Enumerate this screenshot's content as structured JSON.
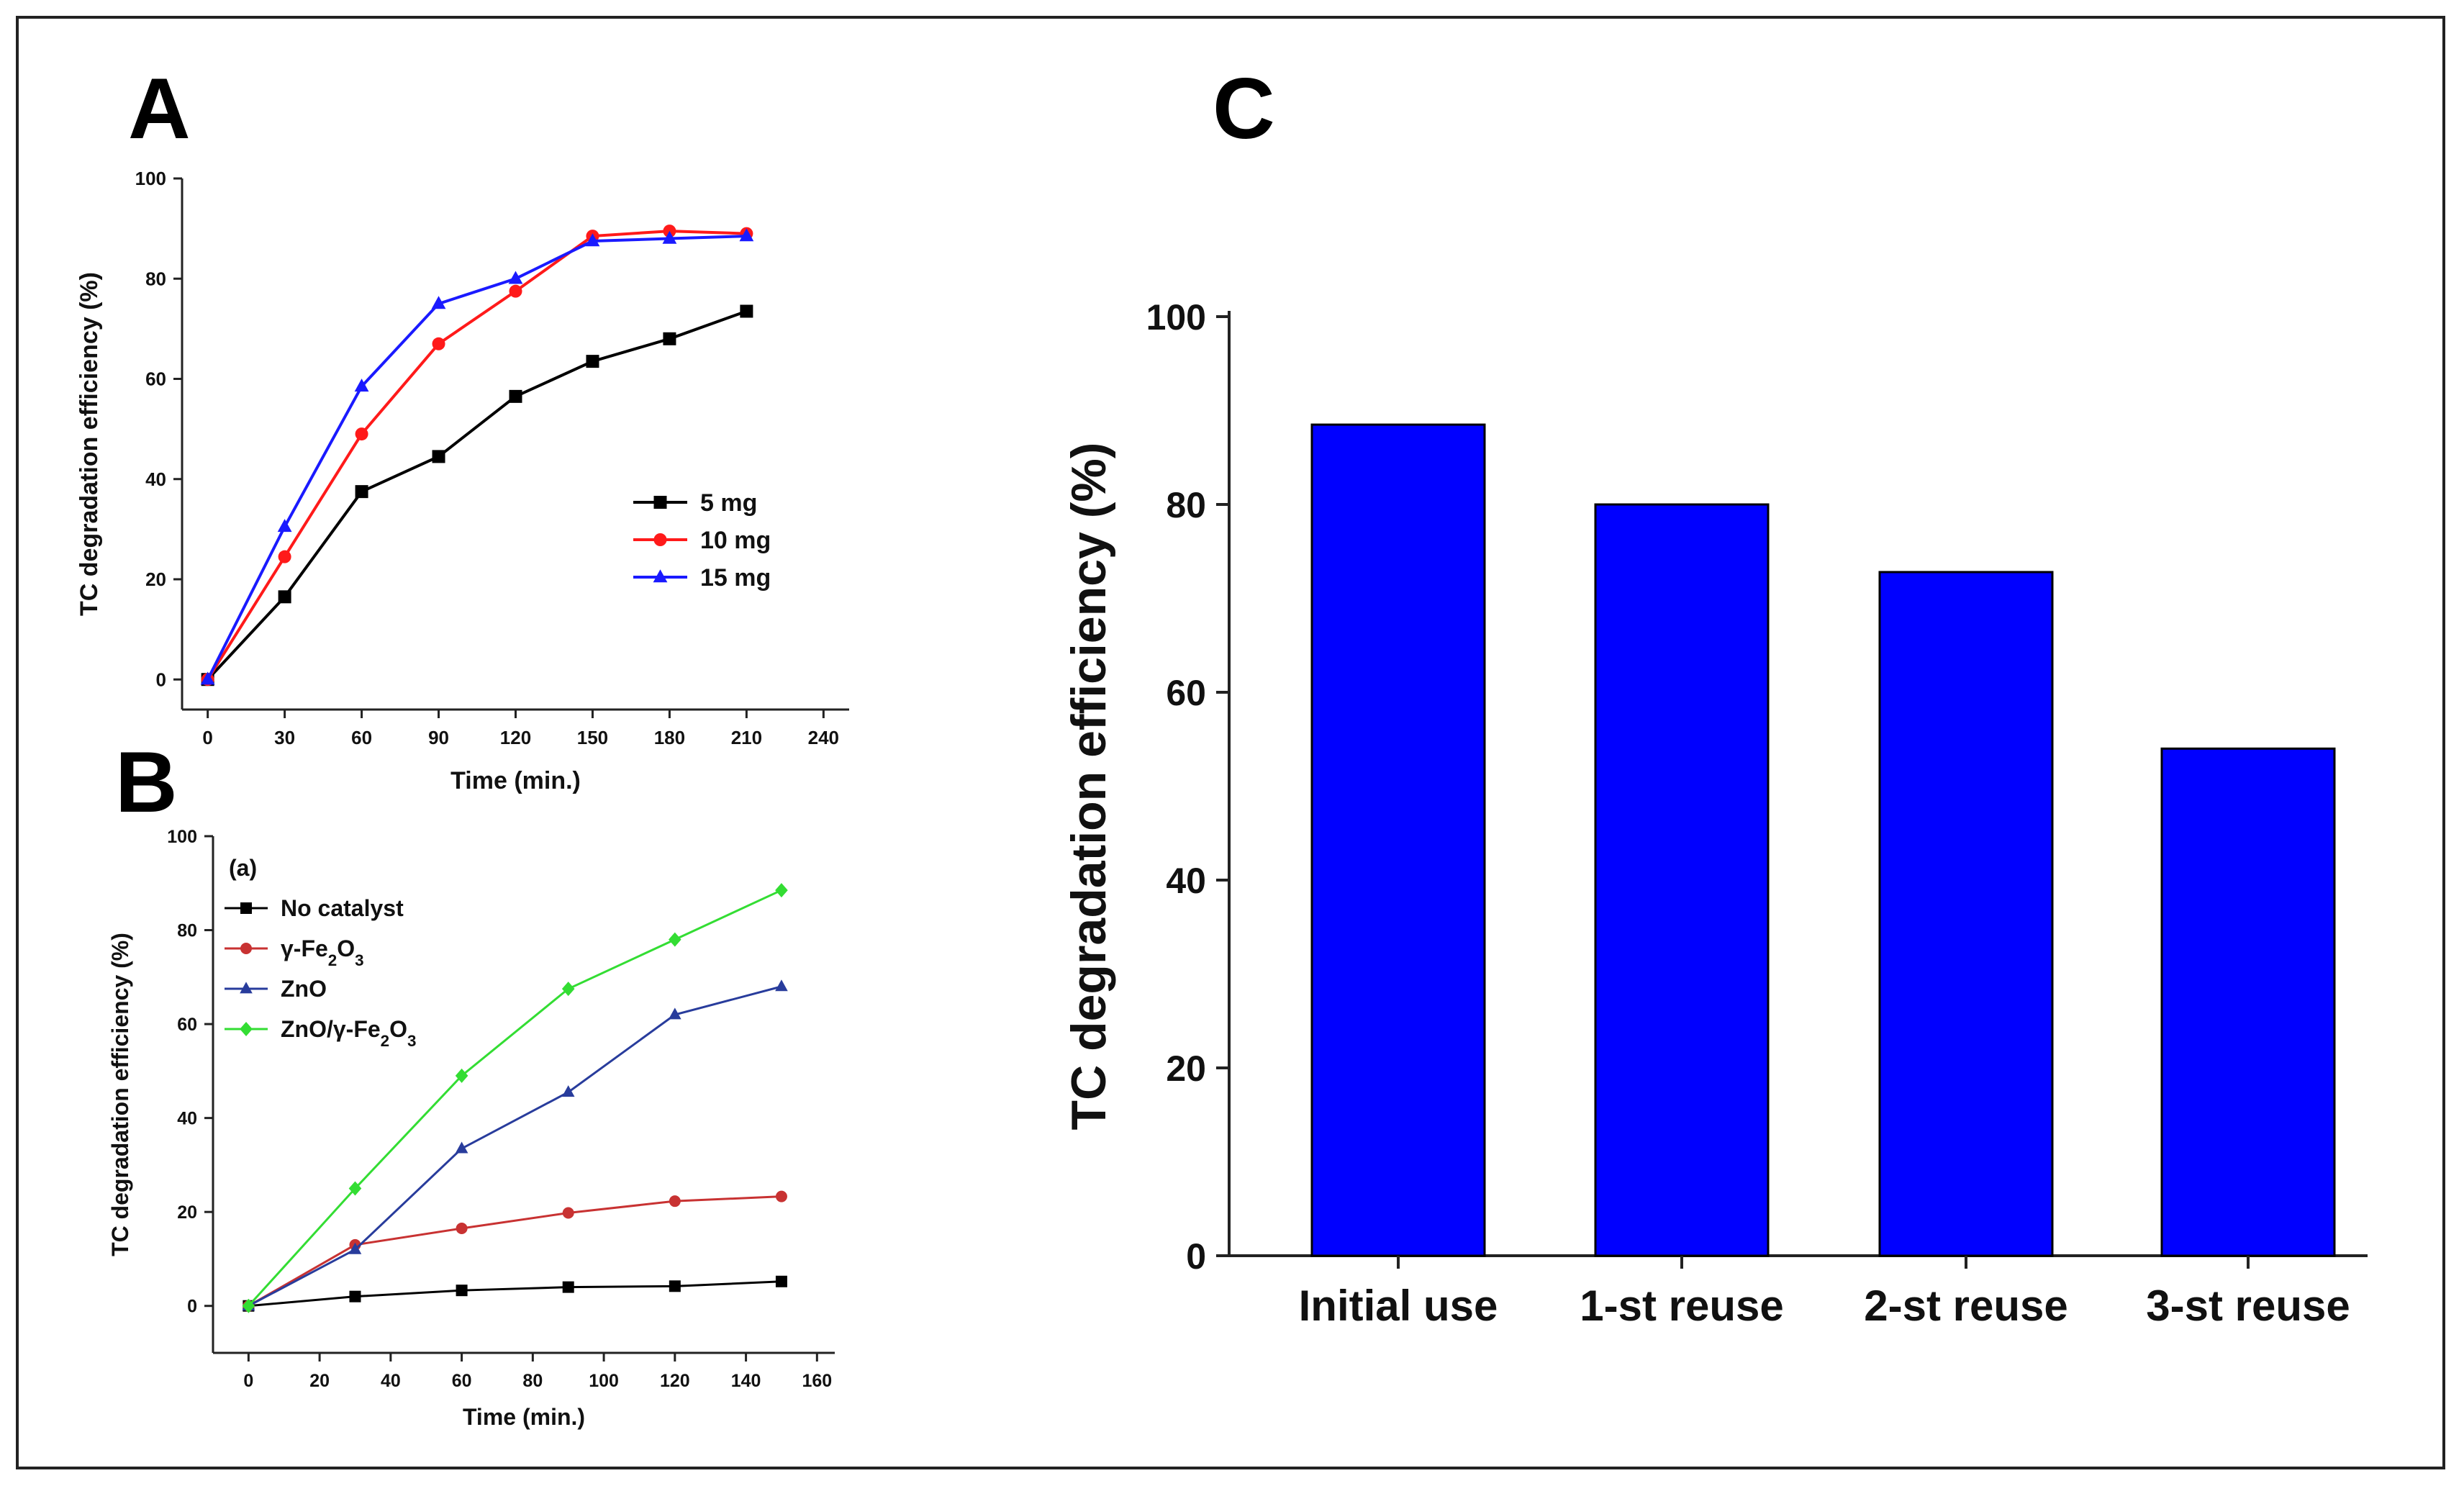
{
  "panels": {
    "a_label": "A",
    "b_label": "B",
    "c_label": "C"
  },
  "chart_data": [
    {
      "id": "A",
      "type": "line",
      "xlabel": "Time (min.)",
      "ylabel": "TC degradation efficiency (%)",
      "xlim": [
        -10,
        250
      ],
      "ylim": [
        -6,
        100
      ],
      "xticks": [
        0,
        30,
        60,
        90,
        120,
        150,
        180,
        210,
        240
      ],
      "yticks": [
        0,
        20,
        40,
        60,
        80,
        100
      ],
      "legend_position": "center-right",
      "series": [
        {
          "name": "5 mg",
          "color": "#000000",
          "marker": "square",
          "x": [
            0,
            30,
            60,
            90,
            120,
            150,
            180,
            210
          ],
          "y": [
            0,
            16.5,
            37.5,
            44.5,
            56.5,
            63.5,
            68,
            73.5
          ]
        },
        {
          "name": "10 mg",
          "color": "#ff1a1a",
          "marker": "circle",
          "x": [
            0,
            30,
            60,
            90,
            120,
            150,
            180,
            210
          ],
          "y": [
            0,
            24.5,
            49,
            67,
            77.5,
            88.5,
            89.5,
            89
          ]
        },
        {
          "name": "15 mg",
          "color": "#1a1aff",
          "marker": "triangle",
          "x": [
            0,
            30,
            60,
            90,
            120,
            150,
            180,
            210
          ],
          "y": [
            0,
            30.5,
            58.5,
            75,
            80,
            87.5,
            88,
            88.5
          ]
        }
      ]
    },
    {
      "id": "B",
      "type": "line",
      "inner_label": "(a)",
      "xlabel": "Time (min.)",
      "ylabel": "TC degradation efficiency (%)",
      "xlim": [
        -10,
        165
      ],
      "ylim": [
        -10,
        100
      ],
      "xticks": [
        0,
        20,
        40,
        60,
        80,
        100,
        120,
        140,
        160
      ],
      "yticks": [
        0,
        20,
        40,
        60,
        80,
        100
      ],
      "legend_position": "top-left",
      "series": [
        {
          "name": "No catalyst",
          "color": "#000000",
          "marker": "square",
          "x": [
            0,
            30,
            60,
            90,
            120,
            150
          ],
          "y": [
            0,
            2,
            3.3,
            4,
            4.2,
            5.2
          ]
        },
        {
          "name_prefix": "γ-Fe",
          "name_sub1": "2",
          "name_mid": "O",
          "name_sub2": "3",
          "color": "#c83232",
          "marker": "circle",
          "x": [
            0,
            30,
            60,
            90,
            120,
            150
          ],
          "y": [
            0,
            13,
            16.5,
            19.8,
            22.3,
            23.3
          ]
        },
        {
          "name": "ZnO",
          "color": "#283c9c",
          "marker": "triangle",
          "x": [
            0,
            30,
            60,
            90,
            120,
            150
          ],
          "y": [
            0,
            12,
            33.5,
            45.5,
            62,
            68
          ]
        },
        {
          "name_prefix": "ZnO/γ-Fe",
          "name_sub1": "2",
          "name_mid": "O",
          "name_sub2": "3",
          "color": "#33dd33",
          "marker": "diamond",
          "x": [
            0,
            30,
            60,
            90,
            120,
            150
          ],
          "y": [
            0,
            25,
            49,
            67.5,
            78,
            88.5
          ]
        }
      ]
    },
    {
      "id": "C",
      "type": "bar",
      "ylabel": "TC degradation efficiency (%)",
      "categories": [
        "Initial use",
        "1-st reuse",
        "2-st reuse",
        "3-st reuse"
      ],
      "values": [
        88.5,
        80,
        72.8,
        54
      ],
      "ylim": [
        0,
        100
      ],
      "yticks": [
        0,
        20,
        40,
        60,
        80,
        100
      ],
      "bar_color": "#0000ff"
    }
  ]
}
